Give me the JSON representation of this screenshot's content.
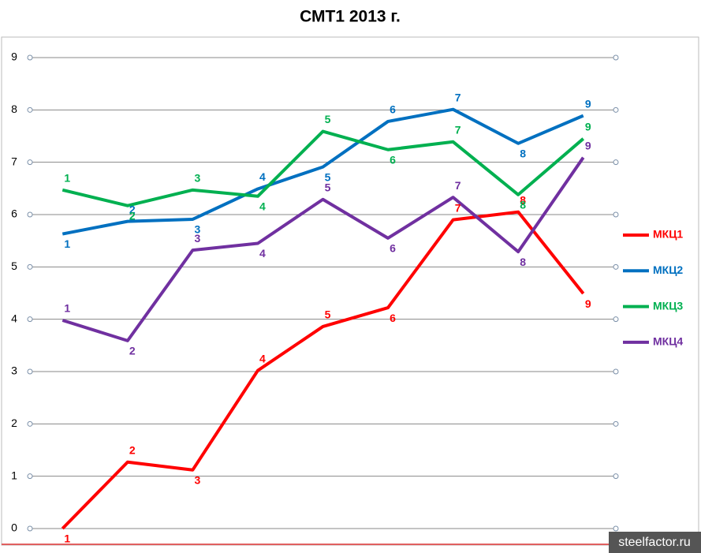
{
  "chart_data": {
    "type": "line",
    "title": "СМТ1 2013 г.",
    "x": [
      1,
      2,
      3,
      4,
      5,
      6,
      7,
      8,
      9
    ],
    "xlim": [
      0.5,
      9.5
    ],
    "ylim": [
      0,
      9
    ],
    "yticks": [
      0,
      1,
      2,
      3,
      4,
      5,
      6,
      7,
      8,
      9
    ],
    "grid": true,
    "legend": "right",
    "series": [
      {
        "name": "МКЦ1",
        "color": "#ff0000",
        "values": [
          0,
          1.27,
          1.12,
          3.02,
          3.86,
          4.22,
          5.9,
          6.05,
          4.49
        ]
      },
      {
        "name": "МКЦ2",
        "color": "#0070c0",
        "values": [
          5.63,
          5.87,
          5.91,
          6.49,
          6.91,
          7.78,
          8.01,
          7.36,
          7.89
        ]
      },
      {
        "name": "МКЦ3",
        "color": "#00b050",
        "values": [
          6.47,
          6.17,
          6.47,
          6.35,
          7.59,
          7.24,
          7.39,
          6.38,
          7.45
        ]
      },
      {
        "name": "МКЦ4",
        "color": "#7030a0",
        "values": [
          3.98,
          3.59,
          5.32,
          5.45,
          6.29,
          5.55,
          6.33,
          5.29,
          7.09
        ]
      }
    ],
    "watermark": "steelfactor.ru"
  }
}
